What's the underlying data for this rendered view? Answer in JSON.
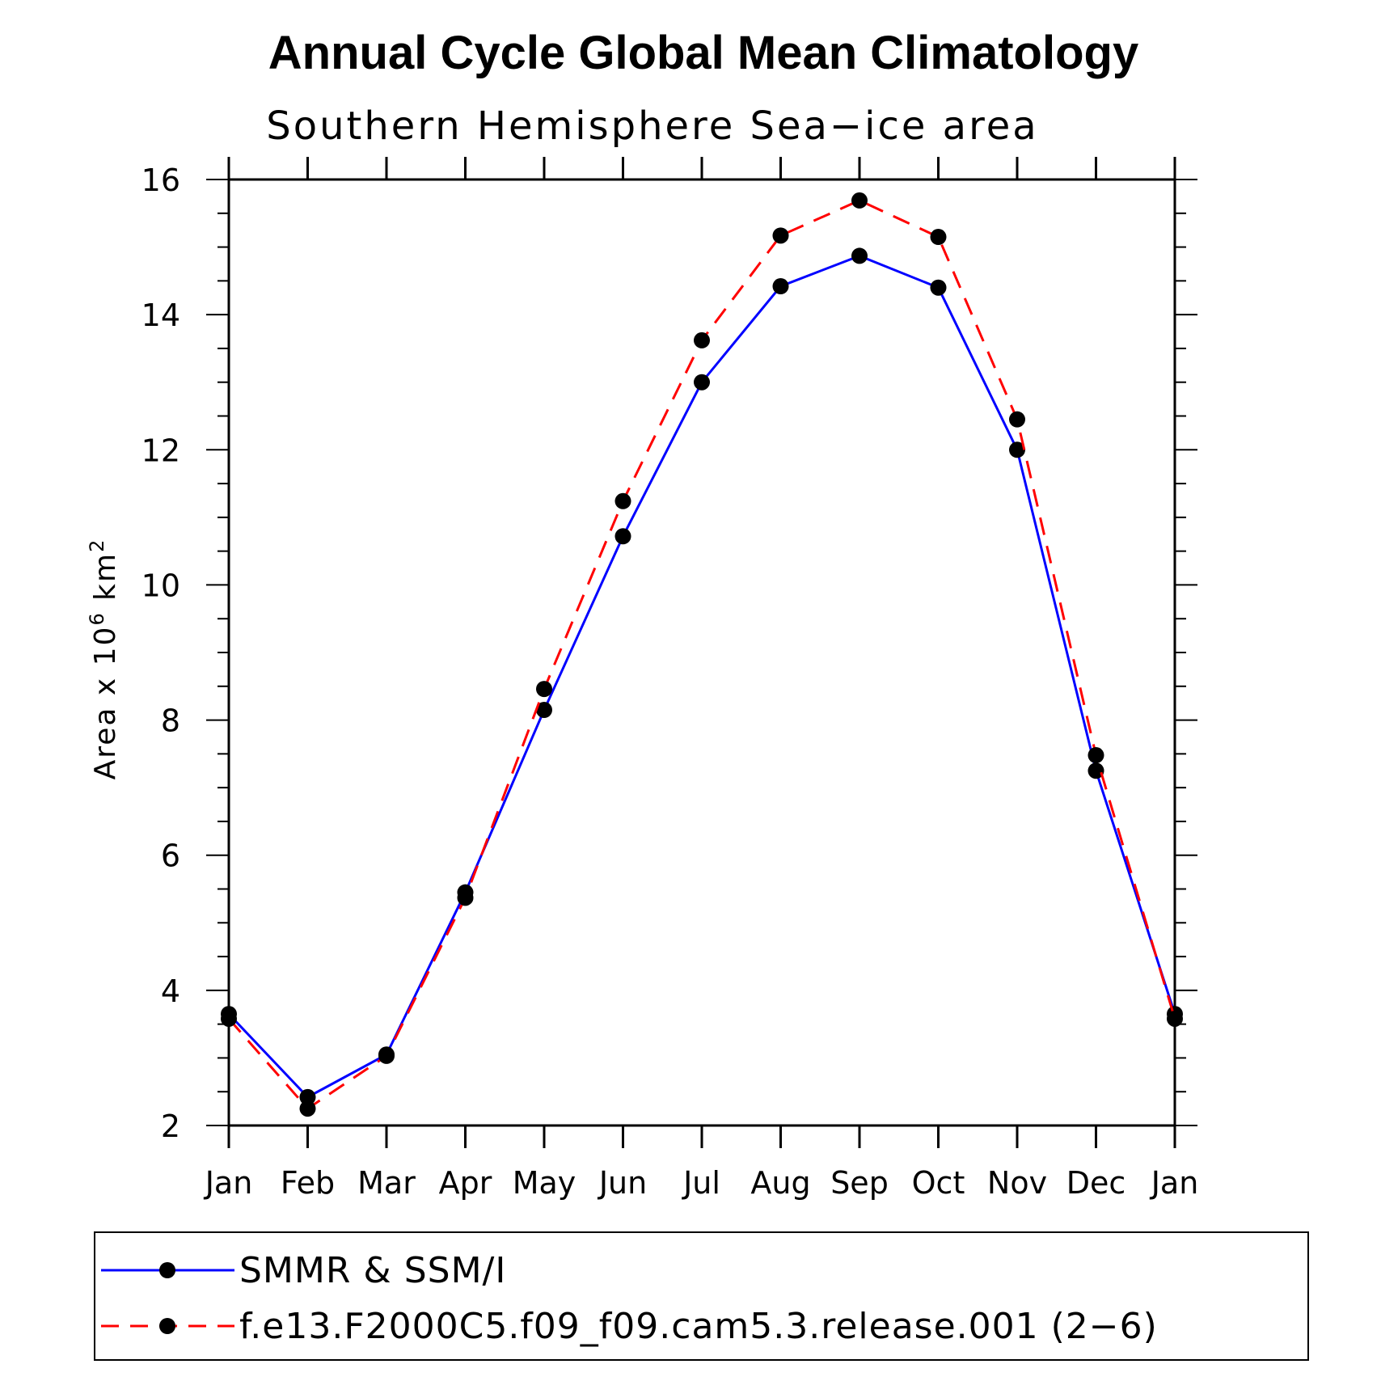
{
  "title": "Annual Cycle Global Mean Climatology",
  "subtitle": "Southern Hemisphere Sea−ice area",
  "chart_data": {
    "type": "line",
    "title": "Annual Cycle Global Mean Climatology",
    "subtitle": "Southern Hemisphere Sea−ice area",
    "xlabel": "",
    "ylabel": "Area x 10",
    "ylabel_sup": "6",
    "ylabel_unit": "km",
    "ylabel_unit_sup": "2",
    "categories": [
      "Jan",
      "Feb",
      "Mar",
      "Apr",
      "May",
      "Jun",
      "Jul",
      "Aug",
      "Sep",
      "Oct",
      "Nov",
      "Dec",
      "Jan"
    ],
    "ylim": [
      2,
      16
    ],
    "yticks": [
      2,
      4,
      6,
      8,
      10,
      12,
      14,
      16
    ],
    "grid": false,
    "legend_position": "bottom",
    "series": [
      {
        "name": "SMMR & SSM/I",
        "color": "#0000ff",
        "dash": "solid",
        "marker": "dot",
        "values": [
          3.65,
          2.42,
          3.05,
          5.45,
          8.15,
          10.72,
          13.0,
          14.42,
          14.87,
          14.4,
          12.0,
          7.25,
          3.65
        ]
      },
      {
        "name": "f.e13.F2000C5.f09_f09.cam5.3.release.001 (2−6)",
        "color": "#ff0000",
        "dash": "dashed",
        "marker": "dot",
        "values": [
          3.58,
          2.25,
          3.03,
          5.37,
          8.46,
          11.24,
          13.62,
          15.17,
          15.69,
          15.15,
          12.45,
          7.48,
          3.58
        ]
      }
    ]
  }
}
